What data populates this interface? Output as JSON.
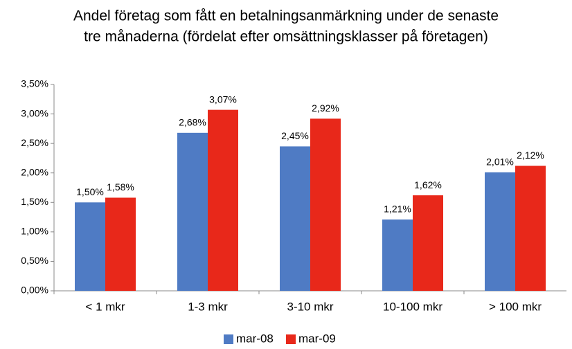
{
  "chart_data": {
    "type": "bar",
    "title": [
      "Andel företag som fått en betalningsanmärkning under de senaste",
      "tre månaderna (fördelat efter omsättningsklasser på företagen)"
    ],
    "categories": [
      "< 1 mkr",
      "1-3 mkr",
      "3-10 mkr",
      "10-100 mkr",
      "> 100 mkr"
    ],
    "series": [
      {
        "name": "mar-08",
        "color": "#4f7bc4",
        "values": [
          1.5,
          2.68,
          2.45,
          1.21,
          2.01
        ],
        "value_labels": [
          "1,50%",
          "2,68%",
          "2,45%",
          "1,21%",
          "2,01%"
        ]
      },
      {
        "name": "mar-09",
        "color": "#e8281a",
        "values": [
          1.58,
          3.07,
          2.92,
          1.62,
          2.12
        ],
        "value_labels": [
          "1,58%",
          "3,07%",
          "2,92%",
          "1,62%",
          "2,12%"
        ]
      }
    ],
    "ylim": [
      0,
      3.5
    ],
    "yticks": [
      {
        "value": 0,
        "label": "0,00%"
      },
      {
        "value": 0.5,
        "label": "0,50%"
      },
      {
        "value": 1,
        "label": "1,00%"
      },
      {
        "value": 1.5,
        "label": "1,50%"
      },
      {
        "value": 2,
        "label": "2,00%"
      },
      {
        "value": 2.5,
        "label": "2,50%"
      },
      {
        "value": 3,
        "label": "3,00%"
      },
      {
        "value": 3.5,
        "label": "3,50%"
      }
    ],
    "grid": false,
    "legend": "bottom"
  }
}
